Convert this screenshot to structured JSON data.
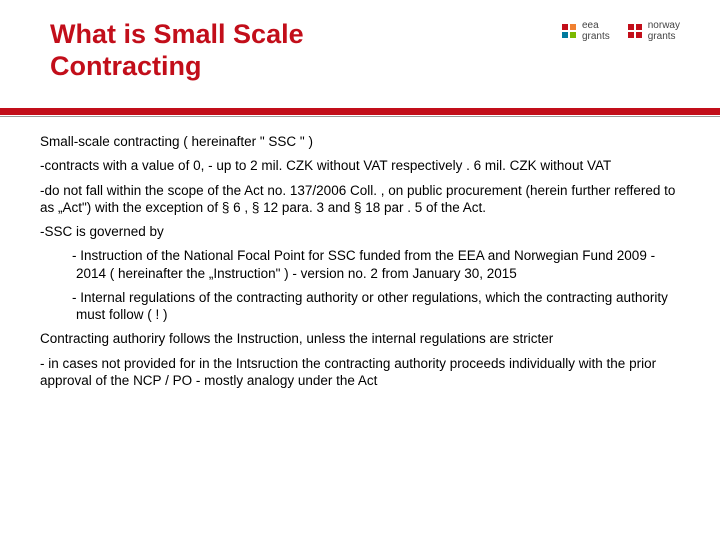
{
  "title": "What is Small Scale Contracting",
  "logos": {
    "eea": {
      "text": "eea\ngrants",
      "colors": [
        "#c20e1a",
        "#f08030",
        "#007a9e",
        "#7ab800"
      ]
    },
    "norway": {
      "text": "norway\ngrants",
      "color": "#c20e1a"
    }
  },
  "paragraphs": {
    "p1": "Small-scale contracting ( hereinafter \" SSC \" )",
    "p2": "-contracts with a value of 0, - up to 2 mil. CZK without VAT respectively . 6 mil. CZK without VAT",
    "p3": "-do not fall within the scope of the Act no. 137/2006 Coll. , on public procurement (herein further reffered to as „Act\") with the exception of § 6 , § 12 para. 3 and § 18 par . 5 of the Act.",
    "p4": "-SSC is governed by",
    "p5": "- Instruction of the National Focal Point for SSC funded from the EEA and Norwegian Fund 2009 - 2014 ( hereinafter the „Instruction\" ) - version no. 2 from January 30, 2015",
    "p6": "- Internal regulations of the contracting authority or other regulations, which the contracting authority must follow ( ! )",
    "p7": "Contracting authoriry follows the Instruction, unless the internal regulations are stricter",
    "p8": "- in cases not provided for in the Intsruction the contracting authority proceeds individually with the prior approval of the NCP / PO - mostly analogy under the Act"
  }
}
